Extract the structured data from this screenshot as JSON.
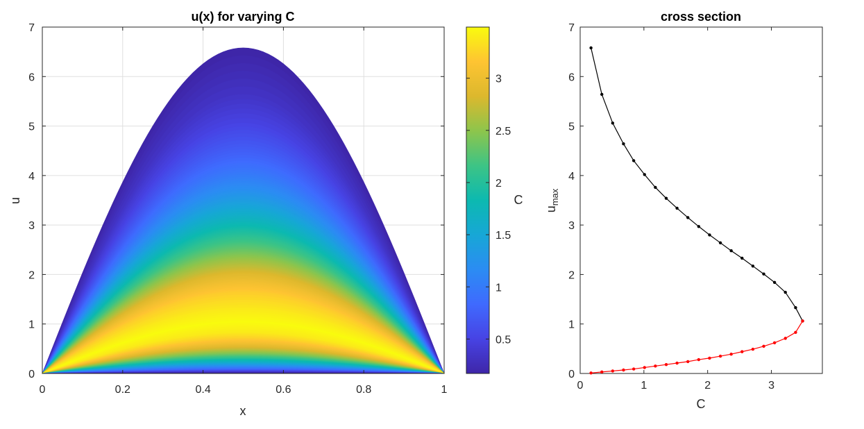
{
  "colors": {
    "c_low": "#3e26a8",
    "c_high": "#f9fb0e",
    "cross_upper": "#000000",
    "cross_lower": "#ff0000"
  },
  "chart_data": [
    {
      "type": "area",
      "title": "u(x) for varying C",
      "xlabel": "x",
      "ylabel": "u",
      "xlim": [
        0,
        1
      ],
      "ylim": [
        0,
        7
      ],
      "xticks": [
        "0",
        "0.2",
        "0.4",
        "0.6",
        "0.8",
        "1"
      ],
      "yticks": [
        "0",
        "1",
        "2",
        "3",
        "4",
        "5",
        "6",
        "7"
      ],
      "grid": true,
      "colorbar": {
        "label": "C",
        "range": [
          0.17,
          3.49
        ],
        "ticks": [
          "0.5",
          "1",
          "1.5",
          "2",
          "2.5",
          "3"
        ],
        "colormap": "parula"
      },
      "curves_note": "family of curves u(x) = u_max * sin(pi x); upper branch colored by C going up from the outer curve, lower branch on the same curve set",
      "upper_branch": {
        "C": [
          0.17,
          0.34,
          0.51,
          0.68,
          0.84,
          1.01,
          1.18,
          1.35,
          1.52,
          1.69,
          1.86,
          2.03,
          2.2,
          2.37,
          2.54,
          2.71,
          2.88,
          3.05,
          3.22,
          3.38,
          3.49
        ],
        "u_max": [
          6.58,
          5.64,
          5.06,
          4.64,
          4.3,
          4.02,
          3.76,
          3.54,
          3.34,
          3.15,
          2.97,
          2.8,
          2.64,
          2.48,
          2.33,
          2.17,
          2.01,
          1.84,
          1.64,
          1.33,
          1.06
        ]
      },
      "lower_branch": {
        "C": [
          3.49,
          3.38,
          3.22,
          3.05,
          2.88,
          2.71,
          2.54,
          2.37,
          2.2,
          2.03,
          1.86,
          1.69,
          1.52,
          1.35,
          1.18,
          1.01,
          0.84,
          0.68,
          0.51,
          0.34,
          0.17
        ],
        "u_max": [
          1.06,
          0.83,
          0.71,
          0.62,
          0.55,
          0.49,
          0.44,
          0.39,
          0.35,
          0.31,
          0.28,
          0.24,
          0.21,
          0.18,
          0.15,
          0.12,
          0.09,
          0.07,
          0.05,
          0.03,
          0.01
        ]
      }
    },
    {
      "type": "line",
      "title": "cross section",
      "xlabel": "C",
      "ylabel": "u",
      "ylabel_subscript": "max",
      "xlim": [
        0,
        3.8
      ],
      "ylim": [
        0,
        7
      ],
      "xticks": [
        "0",
        "1",
        "2",
        "3"
      ],
      "yticks": [
        "0",
        "1",
        "2",
        "3",
        "4",
        "5",
        "6",
        "7"
      ],
      "grid": false,
      "series": [
        {
          "name": "upper branch",
          "color": "#000000",
          "x": [
            0.17,
            0.34,
            0.51,
            0.68,
            0.84,
            1.01,
            1.18,
            1.35,
            1.52,
            1.69,
            1.86,
            2.03,
            2.2,
            2.37,
            2.54,
            2.71,
            2.88,
            3.05,
            3.22,
            3.38,
            3.49
          ],
          "y": [
            6.58,
            5.64,
            5.06,
            4.64,
            4.3,
            4.02,
            3.76,
            3.54,
            3.34,
            3.15,
            2.97,
            2.8,
            2.64,
            2.48,
            2.33,
            2.17,
            2.01,
            1.84,
            1.64,
            1.33,
            1.06
          ]
        },
        {
          "name": "lower branch",
          "color": "#ff0000",
          "x": [
            3.49,
            3.38,
            3.22,
            3.05,
            2.88,
            2.71,
            2.54,
            2.37,
            2.2,
            2.03,
            1.86,
            1.69,
            1.52,
            1.35,
            1.18,
            1.01,
            0.84,
            0.68,
            0.51,
            0.34,
            0.17
          ],
          "y": [
            1.06,
            0.83,
            0.71,
            0.62,
            0.55,
            0.49,
            0.44,
            0.39,
            0.35,
            0.31,
            0.28,
            0.24,
            0.21,
            0.18,
            0.15,
            0.12,
            0.09,
            0.07,
            0.05,
            0.03,
            0.01
          ]
        }
      ]
    }
  ]
}
